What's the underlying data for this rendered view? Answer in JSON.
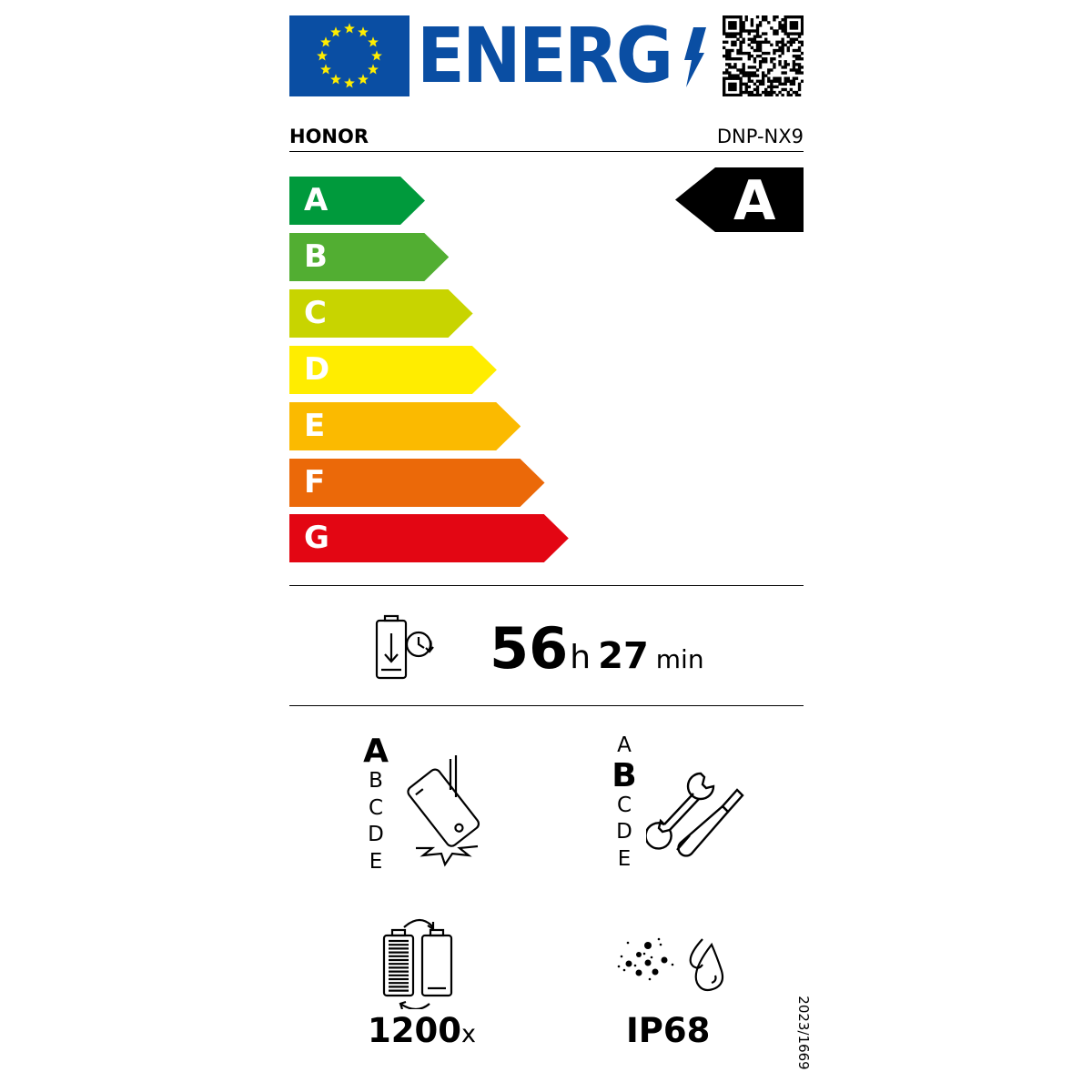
{
  "header": {
    "logo_text": "ENERG",
    "flag_color": "#0a4ea3",
    "star_color": "#ffed00",
    "qr_code": "qr-code"
  },
  "supplier": "HONOR",
  "model": "DNP-NX9",
  "energy_scale": {
    "classes": [
      {
        "label": "A",
        "color": "#009a3c"
      },
      {
        "label": "B",
        "color": "#52ae32"
      },
      {
        "label": "C",
        "color": "#c8d400"
      },
      {
        "label": "D",
        "color": "#ffed00"
      },
      {
        "label": "E",
        "color": "#fbba00"
      },
      {
        "label": "F",
        "color": "#eb6909"
      },
      {
        "label": "G",
        "color": "#e30613"
      }
    ],
    "rated_class": "A"
  },
  "battery_endurance": {
    "hours": "56",
    "hours_unit": "h",
    "minutes": "27",
    "minutes_unit": "min"
  },
  "drop_resistance": {
    "scale": [
      "A",
      "B",
      "C",
      "D",
      "E"
    ],
    "selected": "A"
  },
  "repairability": {
    "scale": [
      "A",
      "B",
      "C",
      "D",
      "E"
    ],
    "selected": "B"
  },
  "battery_cycles": {
    "value": "1200",
    "unit": "x"
  },
  "ingress_protection": {
    "value": "IP68"
  },
  "regulation": "2023/1669"
}
